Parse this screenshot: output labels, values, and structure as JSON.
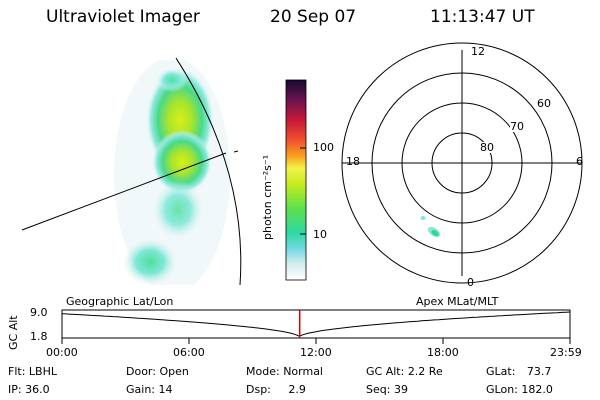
{
  "header": {
    "instrument": "Ultraviolet Imager",
    "date": "20 Sep 07",
    "time": "11:13:47 UT"
  },
  "colorbar": {
    "unit_label": "photon cm⁻²s⁻¹",
    "ticks": [
      "100",
      "10"
    ],
    "scale": "log"
  },
  "polar_plot": {
    "mlt_labels": {
      "top": "12",
      "left": "18",
      "right": "6",
      "bottom": "0"
    },
    "lat_labels": [
      "60",
      "70",
      "80"
    ]
  },
  "timeline": {
    "axis_label": "GC Alt",
    "ymax": "9.0",
    "ymin": "1.8",
    "left_caption": "Geographic Lat/Lon",
    "right_caption": "Apex MLat/MLT",
    "times": [
      "00:00",
      "06:00",
      "12:00",
      "18:00",
      "23:59"
    ],
    "current_marker_hour": 11.23
  },
  "status": {
    "row1": [
      {
        "label": "Flt:",
        "value": "LBHL"
      },
      {
        "label": "Door:",
        "value": "Open"
      },
      {
        "label": "Mode:",
        "value": "Normal"
      },
      {
        "label": "GC Alt:",
        "value": "2.2 Re"
      },
      {
        "label": "GLat:",
        "value": "73.7"
      }
    ],
    "row2": [
      {
        "label": "IP:",
        "value": "36.0"
      },
      {
        "label": "Gain:",
        "value": "14"
      },
      {
        "label": "Dsp:",
        "value": "2.9"
      },
      {
        "label": "Seq:",
        "value": "39"
      },
      {
        "label": "GLon:",
        "value": "182.0"
      }
    ]
  },
  "colors": {
    "marker": "#dd0000",
    "aurora_high": "#b8e81a",
    "aurora_mid": "#49d98a",
    "aurora_low": "#dff2f4"
  }
}
